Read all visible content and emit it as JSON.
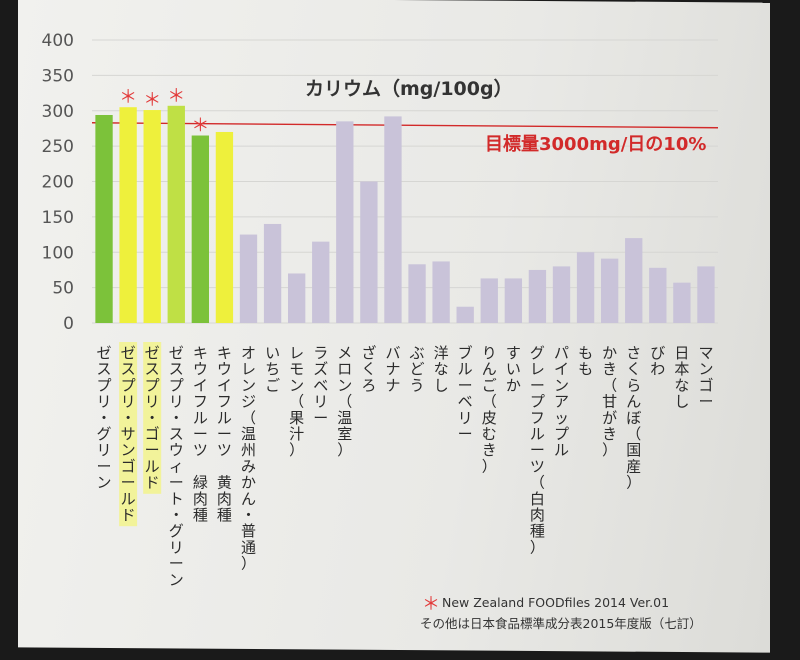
{
  "chart_data": {
    "type": "bar",
    "title": "カリウム（mg/100g）",
    "target_label": "目標量3000mg/日の10%",
    "target_value": 300,
    "ylim": [
      0,
      400
    ],
    "yticks": [
      "0",
      "50",
      "100",
      "150",
      "200",
      "250",
      "300",
      "350",
      "400"
    ],
    "categories": [
      "ゼスプリ・グリーン",
      "ゼスプリ・サンゴールド",
      "ゼスプリ・ゴールド",
      "ゼスプリ・スウィート・グリーン",
      "キウイフルーツ　緑肉種",
      "キウイフルーツ　黄肉種",
      "オレンジ（温州みかん・普通）",
      "いちご",
      "レモン（果汁）",
      "ラズベリー",
      "メロン（温室）",
      "ざくろ",
      "バナナ",
      "ぶどう",
      "洋なし",
      "ブルーベリー",
      "りんご（皮むき）",
      "すいか",
      "グレープフルーツ（白肉種）",
      "パインアップル",
      "もも",
      "かき（甘がき）",
      "さくらんぼ（国産）",
      "びわ",
      "日本なし",
      "マンゴー"
    ],
    "values": [
      294,
      305,
      301,
      307,
      265,
      270,
      125,
      140,
      70,
      115,
      285,
      200,
      292,
      83,
      87,
      23,
      63,
      63,
      75,
      80,
      100,
      91,
      120,
      78,
      57,
      80
    ],
    "colors": [
      "#7cc23a",
      "#eef03c",
      "#eef03c",
      "#bfe045",
      "#7cc23a",
      "#eef03c",
      "#c9c3d9",
      "#c9c3d9",
      "#c9c3d9",
      "#c9c3d9",
      "#c9c3d9",
      "#c9c3d9",
      "#c9c3d9",
      "#c9c3d9",
      "#c9c3d9",
      "#c9c3d9",
      "#c9c3d9",
      "#c9c3d9",
      "#c9c3d9",
      "#c9c3d9",
      "#c9c3d9",
      "#c9c3d9",
      "#c9c3d9",
      "#c9c3d9",
      "#c9c3d9",
      "#c9c3d9"
    ],
    "starred": [
      false,
      true,
      true,
      true,
      true,
      false,
      false,
      false,
      false,
      false,
      false,
      false,
      false,
      false,
      false,
      false,
      false,
      false,
      false,
      false,
      false,
      false,
      false,
      false,
      false,
      false
    ],
    "highlighted_labels": [
      false,
      true,
      true,
      false,
      false,
      false,
      false,
      false,
      false,
      false,
      false,
      false,
      false,
      false,
      false,
      false,
      false,
      false,
      false,
      false,
      false,
      false,
      false,
      false,
      false,
      false
    ],
    "label_highlight_color": "#f2f39a",
    "target_color": "#d22a2a",
    "star_glyph": "＊",
    "source_1": "New Zealand FOODfiles 2014 Ver.01",
    "source_2": "その他は日本食品標準成分表2015年度版（七訂）"
  }
}
